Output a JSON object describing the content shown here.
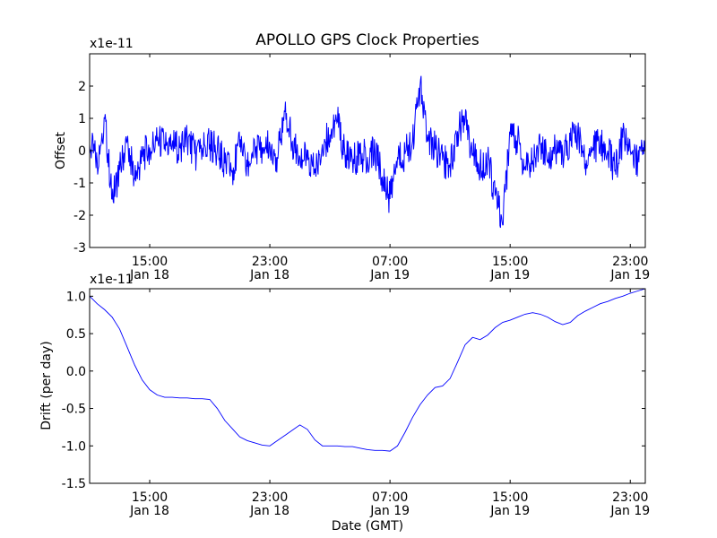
{
  "figure": {
    "title": "APOLLO GPS Clock Properties",
    "xlabel": "Date (GMT)",
    "line_color": "#0000ff"
  },
  "chart_data": [
    {
      "type": "line",
      "title": "APOLLO GPS Clock Properties",
      "xlabel": "",
      "ylabel": "Offset",
      "exponent_label": "x1e-11",
      "xlim": [
        "Jan 18 11:00",
        "Jan 20 00:00"
      ],
      "ylim": [
        -3,
        3
      ],
      "yticks": [
        -3,
        -2,
        -1,
        0,
        1,
        2
      ],
      "ytick_labels": [
        "-3",
        "-2",
        "-1",
        "0",
        "1",
        "2"
      ],
      "xticks": [
        {
          "x": "Jan 18 15:00",
          "time": "15:00",
          "date": "Jan 18"
        },
        {
          "x": "Jan 18 23:00",
          "time": "23:00",
          "date": "Jan 18"
        },
        {
          "x": "Jan 19 07:00",
          "time": "07:00",
          "date": "Jan 19"
        },
        {
          "x": "Jan 19 15:00",
          "time": "15:00",
          "date": "Jan 19"
        },
        {
          "x": "Jan 19 23:00",
          "time": "23:00",
          "date": "Jan 19"
        }
      ],
      "grid": false,
      "series": [
        {
          "color": "#0000ff",
          "x": [
            "Jan 18 11:00",
            "Jan 18 11:30",
            "Jan 18 12:00",
            "Jan 18 12:30",
            "Jan 18 13:00",
            "Jan 18 13:30",
            "Jan 18 14:00",
            "Jan 18 14:30",
            "Jan 18 15:00",
            "Jan 18 15:30",
            "Jan 18 16:00",
            "Jan 18 16:30",
            "Jan 18 17:00",
            "Jan 18 17:30",
            "Jan 18 18:00",
            "Jan 18 18:30",
            "Jan 18 19:00",
            "Jan 18 19:30",
            "Jan 18 20:00",
            "Jan 18 20:30",
            "Jan 18 21:00",
            "Jan 18 21:30",
            "Jan 18 22:00",
            "Jan 18 22:30",
            "Jan 18 23:00",
            "Jan 18 23:30",
            "Jan 19 00:00",
            "Jan 19 00:30",
            "Jan 19 01:00",
            "Jan 19 01:30",
            "Jan 19 02:00",
            "Jan 19 02:30",
            "Jan 19 03:00",
            "Jan 19 03:30",
            "Jan 19 04:00",
            "Jan 19 04:30",
            "Jan 19 05:00",
            "Jan 19 05:30",
            "Jan 19 06:00",
            "Jan 19 06:30",
            "Jan 19 07:00",
            "Jan 19 07:30",
            "Jan 19 08:00",
            "Jan 19 08:30",
            "Jan 19 09:00",
            "Jan 19 09:30",
            "Jan 19 10:00",
            "Jan 19 10:30",
            "Jan 19 11:00",
            "Jan 19 11:30",
            "Jan 19 12:00",
            "Jan 19 12:30",
            "Jan 19 13:00",
            "Jan 19 13:30",
            "Jan 19 14:00",
            "Jan 19 14:30",
            "Jan 19 15:00",
            "Jan 19 15:30",
            "Jan 19 16:00",
            "Jan 19 16:30",
            "Jan 19 17:00",
            "Jan 19 17:30",
            "Jan 19 18:00",
            "Jan 19 18:30",
            "Jan 19 19:00",
            "Jan 19 19:30",
            "Jan 19 20:00",
            "Jan 19 20:30",
            "Jan 19 21:00",
            "Jan 19 21:30",
            "Jan 19 22:00",
            "Jan 19 22:30",
            "Jan 19 23:00",
            "Jan 19 23:30",
            "Jan 20 00:00"
          ],
          "y": [
            0.2,
            -0.3,
            1.0,
            -1.5,
            -0.6,
            0.3,
            -0.9,
            -0.2,
            0.1,
            0.3,
            0.2,
            0.2,
            0.1,
            0.4,
            -0.1,
            0.0,
            0.2,
            0.0,
            -0.4,
            -0.6,
            0.1,
            -0.5,
            0.1,
            0.1,
            0.2,
            -0.2,
            1.2,
            0.3,
            -0.2,
            -0.3,
            -0.7,
            0.2,
            0.5,
            0.9,
            -0.1,
            -0.3,
            -0.1,
            -0.2,
            0.0,
            -0.8,
            -1.5,
            -0.2,
            -0.1,
            0.3,
            2.0,
            0.5,
            0.1,
            -0.3,
            -0.4,
            0.6,
            0.9,
            -0.1,
            -0.5,
            -0.2,
            -1.4,
            -2.3,
            0.5,
            0.3,
            -0.5,
            -0.3,
            0.2,
            -0.3,
            0.1,
            -0.1,
            0.3,
            0.6,
            -0.4,
            0.1,
            0.2,
            0.0,
            -0.6,
            0.4,
            0.0,
            -0.3,
            0.3
          ]
        }
      ]
    },
    {
      "type": "line",
      "title": "",
      "xlabel": "Date (GMT)",
      "ylabel": "Drift (per day)",
      "exponent_label": "x1e-11",
      "xlim": [
        "Jan 18 11:00",
        "Jan 20 00:00"
      ],
      "ylim": [
        -1.5,
        1.1
      ],
      "yticks": [
        -1.5,
        -1.0,
        -0.5,
        0.0,
        0.5,
        1.0
      ],
      "ytick_labels": [
        "-1.5",
        "-1.0",
        "-0.5",
        "0.0",
        "0.5",
        "1.0"
      ],
      "xticks": [
        {
          "x": "Jan 18 15:00",
          "time": "15:00",
          "date": "Jan 18"
        },
        {
          "x": "Jan 18 23:00",
          "time": "23:00",
          "date": "Jan 18"
        },
        {
          "x": "Jan 19 07:00",
          "time": "07:00",
          "date": "Jan 19"
        },
        {
          "x": "Jan 19 15:00",
          "time": "15:00",
          "date": "Jan 19"
        },
        {
          "x": "Jan 19 23:00",
          "time": "23:00",
          "date": "Jan 19"
        }
      ],
      "grid": false,
      "series": [
        {
          "color": "#0000ff",
          "x": [
            "Jan 18 11:00",
            "Jan 18 11:30",
            "Jan 18 12:00",
            "Jan 18 12:30",
            "Jan 18 13:00",
            "Jan 18 13:30",
            "Jan 18 14:00",
            "Jan 18 14:30",
            "Jan 18 15:00",
            "Jan 18 15:30",
            "Jan 18 16:00",
            "Jan 18 16:30",
            "Jan 18 17:00",
            "Jan 18 17:30",
            "Jan 18 18:00",
            "Jan 18 18:30",
            "Jan 18 19:00",
            "Jan 18 19:30",
            "Jan 18 20:00",
            "Jan 18 20:30",
            "Jan 18 21:00",
            "Jan 18 21:30",
            "Jan 18 22:00",
            "Jan 18 22:30",
            "Jan 18 23:00",
            "Jan 18 23:30",
            "Jan 19 00:00",
            "Jan 19 00:30",
            "Jan 19 01:00",
            "Jan 19 01:30",
            "Jan 19 02:00",
            "Jan 19 02:30",
            "Jan 19 03:00",
            "Jan 19 03:30",
            "Jan 19 04:00",
            "Jan 19 04:30",
            "Jan 19 05:00",
            "Jan 19 05:30",
            "Jan 19 06:00",
            "Jan 19 06:30",
            "Jan 19 07:00",
            "Jan 19 07:30",
            "Jan 19 08:00",
            "Jan 19 08:30",
            "Jan 19 09:00",
            "Jan 19 09:30",
            "Jan 19 10:00",
            "Jan 19 10:30",
            "Jan 19 11:00",
            "Jan 19 11:30",
            "Jan 19 12:00",
            "Jan 19 12:30",
            "Jan 19 13:00",
            "Jan 19 13:30",
            "Jan 19 14:00",
            "Jan 19 14:30",
            "Jan 19 15:00",
            "Jan 19 15:30",
            "Jan 19 16:00",
            "Jan 19 16:30",
            "Jan 19 17:00",
            "Jan 19 17:30",
            "Jan 19 18:00",
            "Jan 19 18:30",
            "Jan 19 19:00",
            "Jan 19 19:30",
            "Jan 19 20:00",
            "Jan 19 20:30",
            "Jan 19 21:00",
            "Jan 19 21:30",
            "Jan 19 22:00",
            "Jan 19 22:30",
            "Jan 19 23:00",
            "Jan 19 23:30",
            "Jan 20 00:00"
          ],
          "y": [
            1.0,
            0.9,
            0.82,
            0.72,
            0.56,
            0.32,
            0.08,
            -0.12,
            -0.25,
            -0.32,
            -0.35,
            -0.35,
            -0.36,
            -0.36,
            -0.37,
            -0.37,
            -0.38,
            -0.5,
            -0.66,
            -0.77,
            -0.88,
            -0.93,
            -0.96,
            -0.99,
            -1.0,
            -0.93,
            -0.86,
            -0.79,
            -0.72,
            -0.78,
            -0.92,
            -1.0,
            -1.0,
            -1.0,
            -1.01,
            -1.01,
            -1.03,
            -1.05,
            -1.06,
            -1.06,
            -1.07,
            -1.0,
            -0.82,
            -0.62,
            -0.45,
            -0.32,
            -0.22,
            -0.2,
            -0.1,
            0.12,
            0.35,
            0.45,
            0.42,
            0.48,
            0.58,
            0.65,
            0.68,
            0.72,
            0.76,
            0.78,
            0.76,
            0.72,
            0.66,
            0.62,
            0.65,
            0.74,
            0.8,
            0.85,
            0.9,
            0.93,
            0.97,
            1.0,
            1.04,
            1.07,
            1.1
          ]
        }
      ]
    }
  ]
}
